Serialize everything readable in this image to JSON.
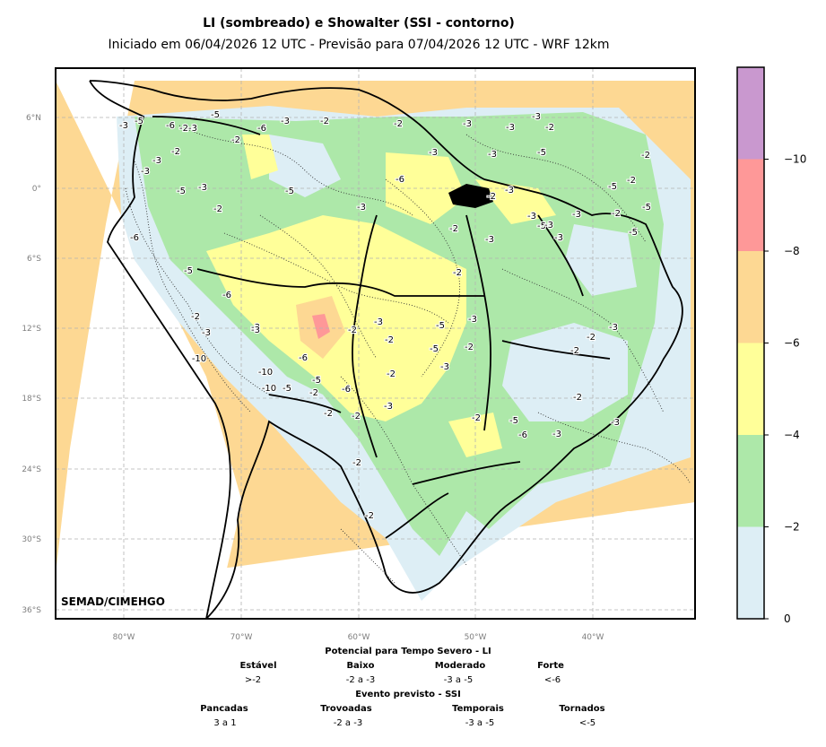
{
  "header": {
    "title": "LI (sombreado) e Showalter (SSI - contorno)",
    "subtitle": "Iniciado em 06/04/2026 12 UTC - Previsão para 07/04/2026 12 UTC - WRF 12km"
  },
  "map": {
    "credit": "SEMAD/CIMEHGO",
    "lat_labels": [
      "6°N",
      "0°",
      "6°S",
      "12°S",
      "18°S",
      "24°S",
      "30°S",
      "36°S"
    ],
    "lon_labels": [
      "80°W",
      "70°W",
      "60°W",
      "50°W",
      "40°W"
    ],
    "ssi_contour_labels": [
      "-3",
      "-5",
      "-6",
      "-2",
      "-3",
      "-5",
      "-6",
      "-3",
      "-2",
      "-2",
      "-3",
      "-3",
      "-3",
      "-2",
      "-3",
      "-5",
      "-3",
      "-2",
      "-5",
      "-2",
      "-3",
      "-2",
      "-3",
      "-3",
      "-5",
      "-6",
      "-5",
      "-3",
      "-2",
      "-5",
      "-3",
      "-6",
      "-2",
      "-3",
      "-3",
      "-2",
      "-5",
      "-5",
      "-3",
      "-2",
      "-2",
      "-3",
      "-3",
      "-5",
      "-6",
      "-3",
      "-2",
      "-3",
      "-10",
      "-3",
      "-10",
      "-10",
      "-5",
      "-6",
      "-2",
      "-6",
      "-5",
      "-2",
      "-2",
      "-3",
      "-2",
      "-5",
      "-3",
      "-2",
      "-3",
      "-2",
      "-3",
      "-5",
      "-2",
      "-3",
      "-2",
      "-2",
      "-5",
      "-2",
      "-6",
      "-3",
      "-2",
      "-2",
      "-2",
      "-3",
      "-2"
    ],
    "colors": {
      "background": "#ffffff",
      "grid": "#b3b3b3",
      "border": "#000000"
    }
  },
  "colorbar": {
    "ticks": [
      "0",
      "−2",
      "−4",
      "−6",
      "−8",
      "−10"
    ],
    "levels": [
      {
        "from": 0,
        "to": -2,
        "color": "#ddeef5"
      },
      {
        "from": -2,
        "to": -4,
        "color": "#ade8a9"
      },
      {
        "from": -4,
        "to": -6,
        "color": "#ffff99"
      },
      {
        "from": -6,
        "to": -8,
        "color": "#fdd893"
      },
      {
        "from": -8,
        "to": -10,
        "color": "#fe9898"
      },
      {
        "from": -10,
        "to": -12,
        "color": "#c998cf"
      }
    ]
  },
  "legend": {
    "li_title": "Potencial para Tempo Severo - LI",
    "li_categories": [
      {
        "name": "Estável",
        "range": ">-2"
      },
      {
        "name": "Baixo",
        "range": "-2 a -3"
      },
      {
        "name": "Moderado",
        "range": "-3 a -5"
      },
      {
        "name": "Forte",
        "range": "<-6"
      }
    ],
    "ssi_title": "Evento previsto - SSI",
    "ssi_categories": [
      {
        "name": "Pancadas",
        "range": "3 a 1"
      },
      {
        "name": "Trovoadas",
        "range": "-2 a -3"
      },
      {
        "name": "Temporais",
        "range": "-3 a -5"
      },
      {
        "name": "Tornados",
        "range": "<-5"
      }
    ]
  }
}
